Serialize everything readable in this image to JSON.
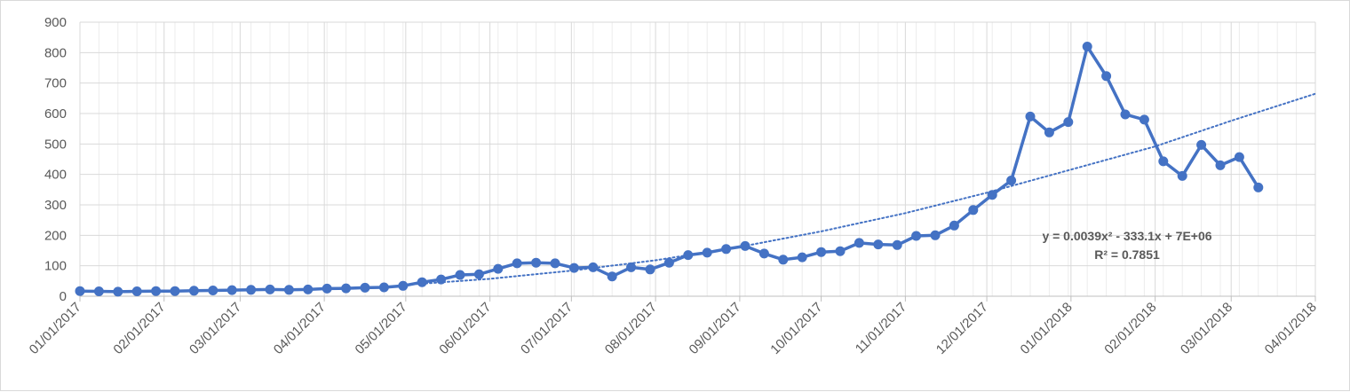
{
  "chart_data": {
    "type": "line",
    "title": "",
    "xlabel": "",
    "ylabel": "",
    "ylim": [
      0,
      900
    ],
    "yticks": [
      0,
      100,
      200,
      300,
      400,
      500,
      600,
      700,
      800,
      900
    ],
    "xlim": [
      "01/01/2017",
      "04/01/2018"
    ],
    "xtick_labels": [
      "01/01/2017",
      "02/01/2017",
      "03/01/2017",
      "04/01/2017",
      "05/01/2017",
      "06/01/2017",
      "07/01/2017",
      "08/01/2017",
      "09/01/2017",
      "10/01/2017",
      "11/01/2017",
      "12/01/2017",
      "01/01/2018",
      "02/01/2018",
      "03/01/2018",
      "04/01/2018"
    ],
    "grid": true,
    "legend": "none",
    "colors": {
      "series": "#4472c4",
      "grid": "#d9d9d9",
      "text": "#595959"
    },
    "series": [
      {
        "values": [
          [
            "01/01/2017",
            17
          ],
          [
            "01/08/2017",
            16
          ],
          [
            "01/15/2017",
            15
          ],
          [
            "01/22/2017",
            16
          ],
          [
            "01/29/2017",
            17
          ],
          [
            "02/05/2017",
            17
          ],
          [
            "02/12/2017",
            18
          ],
          [
            "02/19/2017",
            19
          ],
          [
            "02/26/2017",
            20
          ],
          [
            "03/05/2017",
            21
          ],
          [
            "03/12/2017",
            22
          ],
          [
            "03/19/2017",
            21
          ],
          [
            "03/26/2017",
            22
          ],
          [
            "04/02/2017",
            25
          ],
          [
            "04/09/2017",
            26
          ],
          [
            "04/16/2017",
            28
          ],
          [
            "04/23/2017",
            29
          ],
          [
            "04/30/2017",
            34
          ],
          [
            "05/07/2017",
            46
          ],
          [
            "05/14/2017",
            55
          ],
          [
            "05/21/2017",
            70
          ],
          [
            "05/28/2017",
            72
          ],
          [
            "06/04/2017",
            90
          ],
          [
            "06/11/2017",
            108
          ],
          [
            "06/18/2017",
            110
          ],
          [
            "06/25/2017",
            108
          ],
          [
            "07/02/2017",
            93
          ],
          [
            "07/09/2017",
            95
          ],
          [
            "07/16/2017",
            65
          ],
          [
            "07/23/2017",
            95
          ],
          [
            "07/30/2017",
            88
          ],
          [
            "08/06/2017",
            110
          ],
          [
            "08/13/2017",
            135
          ],
          [
            "08/20/2017",
            143
          ],
          [
            "08/27/2017",
            155
          ],
          [
            "09/03/2017",
            165
          ],
          [
            "09/10/2017",
            140
          ],
          [
            "09/17/2017",
            120
          ],
          [
            "09/24/2017",
            128
          ],
          [
            "10/01/2017",
            145
          ],
          [
            "10/08/2017",
            148
          ],
          [
            "10/15/2017",
            175
          ],
          [
            "10/22/2017",
            170
          ],
          [
            "10/29/2017",
            168
          ],
          [
            "11/05/2017",
            198
          ],
          [
            "11/12/2017",
            200
          ],
          [
            "11/19/2017",
            232
          ],
          [
            "11/26/2017",
            283
          ],
          [
            "12/03/2017",
            333
          ],
          [
            "12/10/2017",
            380
          ],
          [
            "12/17/2017",
            590
          ],
          [
            "12/24/2017",
            538
          ],
          [
            "12/31/2017",
            572
          ],
          [
            "01/07/2018",
            820
          ],
          [
            "01/14/2018",
            723
          ],
          [
            "01/21/2018",
            597
          ],
          [
            "01/28/2018",
            580
          ],
          [
            "02/04/2018",
            443
          ],
          [
            "02/11/2018",
            395
          ],
          [
            "02/18/2018",
            497
          ],
          [
            "02/25/2018",
            430
          ],
          [
            "03/04/2018",
            457
          ],
          [
            "03/11/2018",
            357
          ]
        ]
      }
    ],
    "trendline": {
      "type": "polynomial",
      "style": "dotted",
      "values": [
        [
          "05/05/2017",
          40
        ],
        [
          "06/01/2017",
          57
        ],
        [
          "07/01/2017",
          84
        ],
        [
          "08/01/2017",
          118
        ],
        [
          "09/01/2017",
          162
        ],
        [
          "10/01/2017",
          213
        ],
        [
          "11/01/2017",
          273
        ],
        [
          "12/01/2017",
          340
        ],
        [
          "01/01/2018",
          416
        ],
        [
          "02/01/2018",
          492
        ],
        [
          "03/01/2018",
          576
        ],
        [
          "04/01/2018",
          665
        ]
      ],
      "equation": "y = 0.0039x² - 333.1x + 7E+06",
      "r_squared": "R² = 0.7851"
    }
  }
}
